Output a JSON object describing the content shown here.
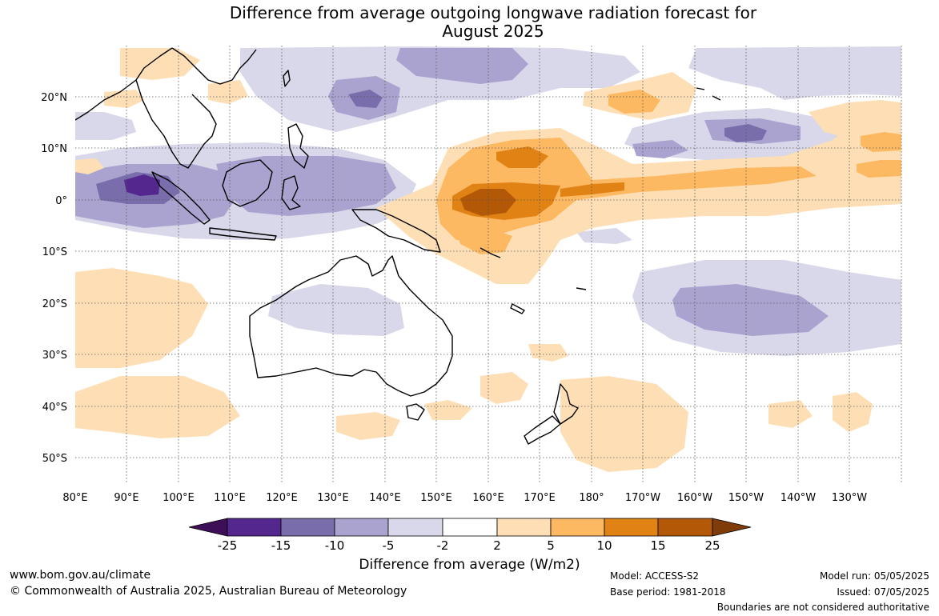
{
  "title_line1": "Difference from average outgoing longwave radiation forecast for",
  "title_line2": "August 2025",
  "lon_labels": [
    "80°E",
    "90°E",
    "100°E",
    "110°E",
    "120°E",
    "130°E",
    "140°E",
    "150°E",
    "160°E",
    "170°E",
    "180°",
    "170°W",
    "160°W",
    "150°W",
    "140°W",
    "130°W"
  ],
  "lat_labels": [
    "20°N",
    "10°N",
    "0°",
    "10°S",
    "20°S",
    "30°S",
    "40°S",
    "50°S"
  ],
  "legend": {
    "ticks": [
      "-25",
      "-15",
      "-10",
      "-5",
      "-2",
      "2",
      "5",
      "10",
      "15",
      "25"
    ],
    "colors": [
      "#3d0f57",
      "#54278f",
      "#7a6dab",
      "#aaa3cf",
      "#d8d8ea",
      "#ffffff",
      "#fedfb5",
      "#fdb862",
      "#e08214",
      "#b35806",
      "#7f3b08"
    ],
    "label": "Difference from average (W/m2)"
  },
  "footer": {
    "website": "www.bom.gov.au/climate",
    "copyright": "© Commonwealth of Australia 2025, Australian Bureau of Meteorology",
    "model": "Model: ACCESS-S2",
    "base_period": "Base period: 1981-2018",
    "model_run": "Model run: 05/05/2025",
    "issued": "Issued: 07/05/2025",
    "disclaimer": "Boundaries are not considered authoritative"
  }
}
